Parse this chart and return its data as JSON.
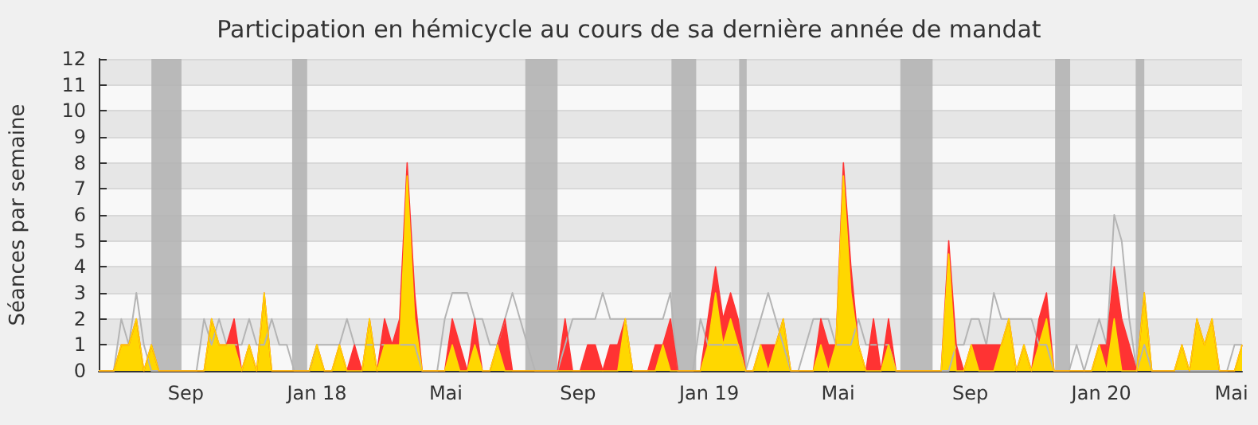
{
  "chart_data": {
    "type": "area",
    "title": "Participation en hémicycle au cours de sa dernière année de mandat",
    "ylabel": "Séances par semaine",
    "x": [
      "2017-06-12",
      "2017-06-19",
      "2017-06-26",
      "2017-07-03",
      "2017-07-10",
      "2017-07-17",
      "2017-07-24",
      "2017-07-31",
      "2017-08-07",
      "2017-08-14",
      "2017-08-21",
      "2017-08-28",
      "2017-09-04",
      "2017-09-11",
      "2017-09-18",
      "2017-09-25",
      "2017-10-02",
      "2017-10-09",
      "2017-10-16",
      "2017-10-23",
      "2017-10-30",
      "2017-11-06",
      "2017-11-13",
      "2017-11-20",
      "2017-11-27",
      "2017-12-04",
      "2017-12-11",
      "2017-12-18",
      "2017-12-25",
      "2018-01-01",
      "2018-01-08",
      "2018-01-15",
      "2018-01-22",
      "2018-01-29",
      "2018-02-05",
      "2018-02-12",
      "2018-02-19",
      "2018-02-26",
      "2018-03-05",
      "2018-03-12",
      "2018-03-19",
      "2018-03-26",
      "2018-04-02",
      "2018-04-09",
      "2018-04-16",
      "2018-04-23",
      "2018-04-30",
      "2018-05-07",
      "2018-05-14",
      "2018-05-21",
      "2018-05-28",
      "2018-06-04",
      "2018-06-11",
      "2018-06-18",
      "2018-06-25",
      "2018-07-02",
      "2018-07-09",
      "2018-07-16",
      "2018-07-23",
      "2018-07-30",
      "2018-08-06",
      "2018-08-13",
      "2018-08-20",
      "2018-08-27",
      "2018-09-03",
      "2018-09-10",
      "2018-09-17",
      "2018-09-24",
      "2018-10-01",
      "2018-10-08",
      "2018-10-15",
      "2018-10-22",
      "2018-10-29",
      "2018-11-05",
      "2018-11-12",
      "2018-11-19",
      "2018-11-26",
      "2018-12-03",
      "2018-12-10",
      "2018-12-17",
      "2018-12-24",
      "2018-12-31",
      "2019-01-07",
      "2019-01-14",
      "2019-01-21",
      "2019-01-28",
      "2019-02-04",
      "2019-02-11",
      "2019-02-18",
      "2019-02-25",
      "2019-03-04",
      "2019-03-11",
      "2019-03-18",
      "2019-03-25",
      "2019-04-01",
      "2019-04-08",
      "2019-04-15",
      "2019-04-22",
      "2019-04-29",
      "2019-05-06",
      "2019-05-13",
      "2019-05-20",
      "2019-05-27",
      "2019-06-03",
      "2019-06-10",
      "2019-06-17",
      "2019-06-24",
      "2019-07-01",
      "2019-07-08",
      "2019-07-15",
      "2019-07-22",
      "2019-07-29",
      "2019-08-05",
      "2019-08-12",
      "2019-08-19",
      "2019-08-26",
      "2019-09-02",
      "2019-09-09",
      "2019-09-16",
      "2019-09-23",
      "2019-09-30",
      "2019-10-07",
      "2019-10-14",
      "2019-10-21",
      "2019-10-28",
      "2019-11-04",
      "2019-11-11",
      "2019-11-18",
      "2019-11-25",
      "2019-12-02",
      "2019-12-09",
      "2019-12-16",
      "2019-12-23",
      "2019-12-30",
      "2020-01-06",
      "2020-01-13",
      "2020-01-20",
      "2020-01-27",
      "2020-02-03",
      "2020-02-10",
      "2020-02-17",
      "2020-02-24",
      "2020-03-02",
      "2020-03-09",
      "2020-03-16",
      "2020-03-23",
      "2020-03-30",
      "2020-04-06",
      "2020-04-13",
      "2020-04-20",
      "2020-04-27",
      "2020-05-04",
      "2020-05-11"
    ],
    "series": [
      {
        "type": "line",
        "color": "#b4b4b4",
        "values": [
          0,
          0,
          0,
          2,
          1,
          3,
          1,
          0,
          0,
          0,
          0,
          0,
          0,
          0,
          2,
          1,
          2,
          1,
          1,
          1,
          2,
          1,
          1,
          2,
          1,
          1,
          0,
          0,
          0,
          1,
          1,
          1,
          1,
          2,
          1,
          1,
          1,
          1,
          1,
          null,
          1,
          1,
          1,
          0,
          0,
          0,
          2,
          3,
          3,
          3,
          2,
          2,
          1,
          1,
          2,
          3,
          2,
          1,
          0,
          0,
          0,
          0,
          1,
          2,
          2,
          2,
          2,
          3,
          2,
          2,
          2,
          2,
          2,
          2,
          2,
          2,
          3,
          0,
          0,
          0,
          2,
          1,
          1,
          1,
          1,
          1,
          0,
          1,
          2,
          3,
          2,
          1,
          0,
          0,
          1,
          2,
          2,
          2,
          1,
          1,
          1,
          2,
          1,
          1,
          1,
          1,
          0,
          0,
          0,
          0,
          0,
          0,
          0,
          0,
          1,
          1,
          2,
          2,
          1,
          3,
          2,
          2,
          2,
          2,
          2,
          1,
          1,
          0,
          0,
          0,
          1,
          0,
          1,
          2,
          1,
          6,
          5,
          2,
          0,
          1,
          0,
          0,
          0,
          0,
          0,
          0,
          0,
          0,
          0,
          0,
          0,
          1,
          1
        ]
      },
      {
        "color": "#ff3333",
        "values": [
          0,
          0,
          0,
          1,
          1,
          2,
          0,
          1,
          0,
          0,
          0,
          0,
          0,
          0,
          0,
          2,
          1,
          1,
          2,
          0,
          1,
          0,
          3,
          0,
          0,
          0,
          0,
          0,
          0,
          1,
          0,
          0,
          1,
          0,
          1,
          0,
          2,
          0,
          2,
          1,
          2,
          8,
          3,
          0,
          0,
          0,
          0,
          2,
          1,
          0,
          2,
          0,
          0,
          1,
          2,
          0,
          0,
          0,
          0,
          0,
          0,
          0,
          2,
          0,
          0,
          1,
          1,
          0,
          1,
          1,
          2,
          0,
          0,
          0,
          1,
          1,
          2,
          0,
          0,
          0,
          0,
          2,
          4,
          2,
          3,
          2,
          0,
          0,
          1,
          1,
          1,
          2,
          0,
          0,
          0,
          0,
          2,
          1,
          1,
          8,
          4,
          1,
          0,
          2,
          0,
          2,
          0,
          0,
          0,
          0,
          0,
          0,
          0,
          5,
          1,
          0,
          1,
          1,
          1,
          1,
          1,
          2,
          0,
          1,
          0,
          2,
          3,
          0,
          0,
          0,
          0,
          0,
          0,
          1,
          1,
          4,
          2,
          1,
          0,
          3,
          0,
          0,
          0,
          0,
          1,
          0,
          2,
          1,
          2,
          0,
          0,
          0,
          1
        ]
      },
      {
        "color": "#ffd700",
        "values": [
          0,
          0,
          0,
          1,
          1,
          2,
          0,
          1,
          0,
          0,
          0,
          0,
          0,
          0,
          0,
          2,
          1,
          1,
          1,
          0,
          1,
          0,
          3,
          0,
          0,
          0,
          0,
          0,
          0,
          1,
          0,
          0,
          1,
          0,
          0,
          0,
          2,
          0,
          1,
          1,
          1,
          7.5,
          2,
          0,
          0,
          0,
          0,
          1,
          0,
          0,
          1,
          0,
          0,
          1,
          0,
          0,
          0,
          0,
          0,
          0,
          0,
          0,
          0,
          0,
          0,
          0,
          0,
          0,
          0,
          0,
          2,
          0,
          0,
          0,
          0,
          1,
          0,
          0,
          0,
          0,
          0,
          1,
          3,
          1,
          2,
          1,
          0,
          0,
          1,
          0,
          1,
          2,
          0,
          0,
          0,
          0,
          1,
          0,
          1,
          7.5,
          3,
          1,
          0,
          0,
          0,
          1,
          0,
          0,
          0,
          0,
          0,
          0,
          0,
          4.5,
          0,
          0,
          1,
          0,
          0,
          0,
          1,
          2,
          0,
          1,
          0,
          1,
          2,
          0,
          0,
          0,
          0,
          0,
          0,
          1,
          0,
          2,
          0,
          0,
          0,
          3,
          0,
          0,
          0,
          0,
          1,
          0,
          2,
          1,
          2,
          0,
          0,
          0,
          1
        ]
      }
    ],
    "xlim": [
      "2017-06-12",
      "2020-05-11"
    ],
    "xticks": [
      {
        "value": "2017-09-01",
        "label": "Sep"
      },
      {
        "value": "2018-01-01",
        "label": "Jan 18"
      },
      {
        "value": "2018-05-01",
        "label": "Mai"
      },
      {
        "value": "2018-09-01",
        "label": "Sep"
      },
      {
        "value": "2019-01-01",
        "label": "Jan 19"
      },
      {
        "value": "2019-05-01",
        "label": "Mai"
      },
      {
        "value": "2019-09-01",
        "label": "Sep"
      },
      {
        "value": "2020-01-01",
        "label": "Jan 20"
      },
      {
        "value": "2020-05-01",
        "label": "Mai"
      }
    ],
    "ylim": [
      0,
      12
    ],
    "yticks": [
      0,
      1,
      2,
      3,
      4,
      5,
      6,
      7,
      8,
      9,
      10,
      11,
      12
    ],
    "bands": [
      {
        "axis": "x",
        "from": "2017-07-31",
        "to": "2017-08-28",
        "color": "#b4b4b4"
      },
      {
        "axis": "x",
        "from": "2017-12-09",
        "to": "2017-12-23",
        "color": "#b4b4b4"
      },
      {
        "axis": "x",
        "from": "2018-07-14",
        "to": "2018-08-13",
        "color": "#b4b4b4"
      },
      {
        "axis": "x",
        "from": "2018-11-27",
        "to": "2018-12-20",
        "color": "#b4b4b4"
      },
      {
        "axis": "x",
        "from": "2019-01-29",
        "to": "2019-02-05",
        "color": "#b4b4b4"
      },
      {
        "axis": "x",
        "from": "2019-06-28",
        "to": "2019-07-28",
        "color": "#b4b4b4"
      },
      {
        "axis": "x",
        "from": "2019-11-19",
        "to": "2019-12-03",
        "color": "#b4b4b4"
      },
      {
        "axis": "x",
        "from": "2020-02-02",
        "to": "2020-02-10",
        "color": "#b4b4b4"
      }
    ],
    "grid": "y",
    "marker": "none"
  }
}
